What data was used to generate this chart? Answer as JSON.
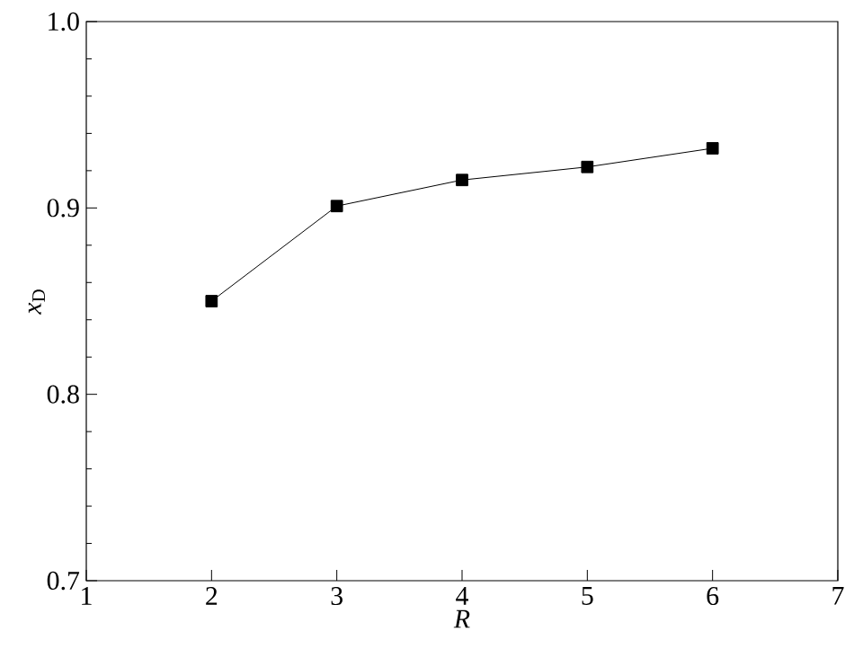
{
  "chart_data": {
    "type": "line",
    "xlabel": "R",
    "ylabel": "*x*$_{D}$",
    "x": [
      2,
      3,
      4,
      5,
      6
    ],
    "series": [
      {
        "color": "#000000",
        "values": [
          0.85,
          0.901,
          0.915,
          0.922,
          0.932
        ]
      }
    ],
    "xlim": [
      1,
      7
    ],
    "xticks": [
      1,
      2,
      3,
      4,
      5,
      6,
      7
    ],
    "ylim": [
      0.7,
      1.0
    ],
    "yticks": [
      {
        "value": 0.7,
        "label": "0.7"
      },
      {
        "value": 0.8,
        "label": "0.8"
      },
      {
        "value": 0.9,
        "label": "0.9"
      },
      {
        "value": 1.0,
        "label": "1.0"
      }
    ],
    "marker": "square",
    "line_style": "solid"
  }
}
